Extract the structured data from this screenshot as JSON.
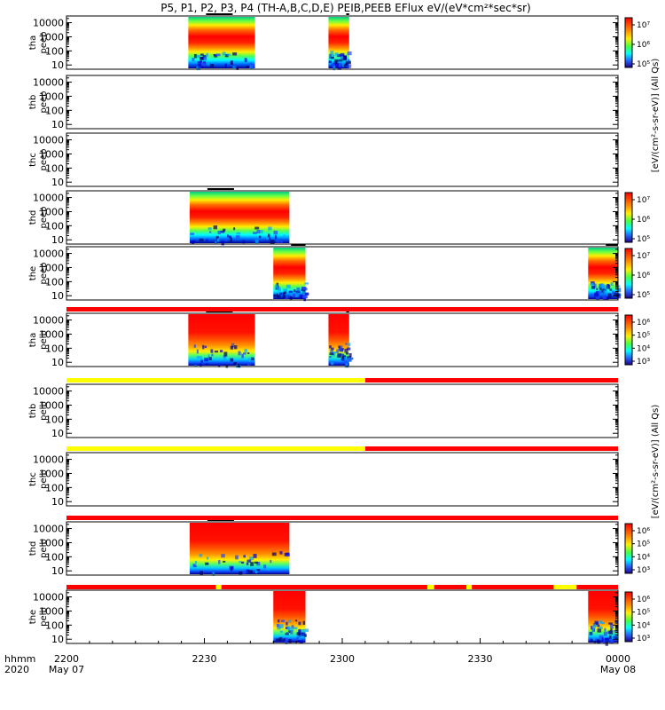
{
  "title": "P5, P1, P2, P3, P4 (TH-A,B,C,D,E) PEIB,PEEB EFlux eV/(eV*cm²*sec*sr)",
  "colorbar_unit_a": "[eV/(cm²-s-sr-eV)] (All Qs)",
  "colorbar_unit_b": "[eV/(cm²-s-sr-eV)] (All Qs)",
  "time_axis": {
    "ticks": [
      "2200",
      "2230",
      "2300",
      "2330",
      "0000"
    ],
    "dates": [
      "May 07",
      "",
      "",
      "",
      "May 08"
    ],
    "left_labels": [
      "hhmm",
      "2020"
    ]
  },
  "colors": {
    "flag_red": "#ff0000",
    "flag_yellow": "#ffff00",
    "bar_black": "#000000"
  },
  "chart_data": {
    "type": "heatmap",
    "x_range_minutes": [
      0,
      120
    ],
    "y_axis": {
      "scale": "log",
      "ticks": [
        "10",
        "100",
        "1000",
        "10000"
      ],
      "ylim": [
        5,
        30000
      ]
    },
    "panels": [
      {
        "label": "tha\npeeb",
        "cbar": "top",
        "cbar_ticks": [
          "10⁷",
          "10⁶",
          "10⁵"
        ],
        "segments": [
          [
            26.5,
            41
          ],
          [
            57,
            61.5
          ]
        ],
        "style": "electron"
      },
      {
        "label": "thb\npeeb",
        "cbar": "none",
        "segments": [],
        "style": "electron"
      },
      {
        "label": "thc\npeeb",
        "cbar": "none",
        "segments": [],
        "style": "electron"
      },
      {
        "label": "thd\npeeb",
        "cbar": "top",
        "cbar_ticks": [
          "10⁷",
          "10⁶",
          "10⁵"
        ],
        "segments": [
          [
            26.8,
            48.5
          ]
        ],
        "style": "electron"
      },
      {
        "label": "the\npeeb",
        "cbar": "top",
        "cbar_ticks": [
          "10⁷",
          "10⁶",
          "10⁵"
        ],
        "segments": [
          [
            45,
            52
          ],
          [
            113.5,
            120
          ]
        ],
        "style": "electron"
      },
      {
        "label": "tha\npeib",
        "cbar": "top",
        "cbar_ticks": [
          "10⁶",
          "10⁵",
          "10⁴",
          "10³"
        ],
        "segments": [
          [
            26.5,
            41
          ],
          [
            57,
            61.5
          ]
        ],
        "style": "ion"
      },
      {
        "label": "thb\npeib",
        "cbar": "none",
        "segments": [],
        "style": "ion"
      },
      {
        "label": "thc\npeib",
        "cbar": "none",
        "segments": [],
        "style": "ion"
      },
      {
        "label": "thd\npeib",
        "cbar": "top",
        "cbar_ticks": [
          "10⁶",
          "10⁵",
          "10⁴",
          "10³"
        ],
        "segments": [
          [
            26.8,
            48.5
          ]
        ],
        "style": "ion"
      },
      {
        "label": "the\npeib",
        "cbar": "top",
        "cbar_ticks": [
          "10⁶",
          "10⁵",
          "10⁴",
          "10³"
        ],
        "segments": [
          [
            45,
            52
          ],
          [
            113.5,
            120
          ]
        ],
        "style": "ion"
      }
    ],
    "flag_bars": [
      {
        "after_panel": 4,
        "segments": [
          {
            "from": 0,
            "to": 120,
            "color": "red"
          }
        ]
      },
      {
        "after_panel": 5,
        "segments": [
          {
            "from": 0,
            "to": 65,
            "color": "yellow"
          },
          {
            "from": 65,
            "to": 120,
            "color": "red"
          }
        ]
      },
      {
        "after_panel": 6,
        "segments": [
          {
            "from": 0,
            "to": 65,
            "color": "yellow"
          },
          {
            "from": 65,
            "to": 120,
            "color": "red"
          }
        ]
      },
      {
        "after_panel": 7,
        "segments": [
          {
            "from": 0,
            "to": 120,
            "color": "red"
          }
        ]
      },
      {
        "after_panel": 8,
        "segments": [
          {
            "from": 0,
            "to": 120,
            "color": "red"
          },
          {
            "from": 32.5,
            "to": 33.7,
            "color": "yellow"
          },
          {
            "from": 78.5,
            "to": 80,
            "color": "yellow"
          },
          {
            "from": 87,
            "to": 88.2,
            "color": "yellow"
          },
          {
            "from": 106,
            "to": 111,
            "color": "yellow"
          }
        ]
      }
    ]
  }
}
